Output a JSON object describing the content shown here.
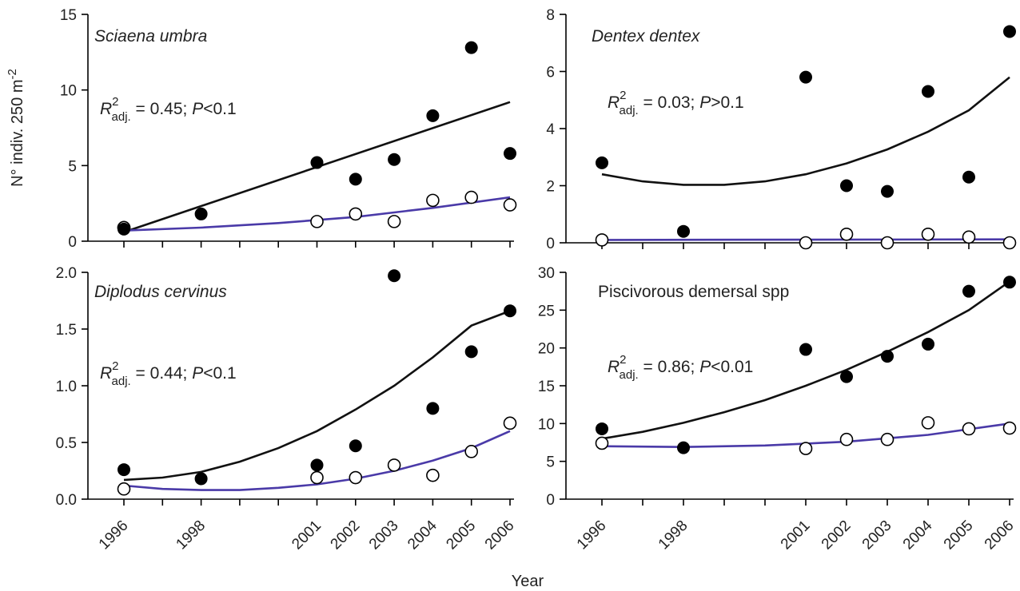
{
  "figure": {
    "ylabel": "N° indiv. 250 m",
    "ylabel_sup": "-2",
    "xlabel": "Year",
    "year_ticks": [
      "1996",
      "1998",
      "2001",
      "2002",
      "2003",
      "2004",
      "2005",
      "2006"
    ]
  },
  "chart_data": [
    {
      "type": "scatter",
      "title": "Sciaena umbra",
      "title_italic": true,
      "r2_value": "0.45",
      "p_op": "<",
      "p_value": "0.1",
      "xlim": [
        1996,
        2006
      ],
      "ylim": [
        0,
        15
      ],
      "yticks": [
        0,
        5,
        10,
        15
      ],
      "ytick_labels": [
        "0",
        "5",
        "10",
        "15"
      ],
      "filled": {
        "x": [
          1996,
          1998,
          2001,
          2002,
          2003,
          2004,
          2005,
          2006
        ],
        "y": [
          0.8,
          1.8,
          5.2,
          4.1,
          5.4,
          8.3,
          12.8,
          5.8
        ]
      },
      "open": {
        "x": [
          1996,
          1996,
          2001,
          2002,
          2003,
          2004,
          2005,
          2006
        ],
        "y": [
          0.9,
          0.9,
          1.3,
          1.8,
          1.3,
          2.7,
          2.9,
          2.4
        ]
      },
      "fit_filled": {
        "x": [
          1996,
          2006
        ],
        "y": [
          0.6,
          9.2
        ]
      },
      "fit_open": {
        "x": [
          1996,
          1998,
          2000,
          2002,
          2004,
          2006
        ],
        "y": [
          0.7,
          0.9,
          1.2,
          1.6,
          2.2,
          2.9
        ]
      }
    },
    {
      "type": "scatter",
      "title": "Dentex dentex",
      "title_italic": true,
      "r2_value": "0.03",
      "p_op": ">",
      "p_value": "0.1",
      "xlim": [
        1996,
        2006
      ],
      "ylim": [
        0,
        8
      ],
      "yticks": [
        0,
        2,
        4,
        6,
        8
      ],
      "ytick_labels": [
        "0",
        "2",
        "4",
        "6",
        "8"
      ],
      "filled": {
        "x": [
          1996,
          1998,
          2001,
          2002,
          2003,
          2004,
          2005,
          2006
        ],
        "y": [
          2.8,
          0.4,
          5.8,
          2.0,
          1.8,
          5.3,
          2.3,
          7.4
        ]
      },
      "open": {
        "x": [
          1996,
          2001,
          2002,
          2003,
          2004,
          2005,
          2006
        ],
        "y": [
          0.1,
          0.0,
          0.3,
          0.0,
          0.3,
          0.2,
          0.0
        ]
      },
      "fit_filled": {
        "x": [
          1996,
          1997,
          1998,
          1999,
          2000,
          2001,
          2002,
          2003,
          2004,
          2005,
          2006
        ],
        "y": [
          2.4,
          2.15,
          2.03,
          2.03,
          2.15,
          2.4,
          2.78,
          3.27,
          3.89,
          4.64,
          5.8
        ]
      },
      "fit_open": {
        "x": [
          1996,
          2006
        ],
        "y": [
          0.1,
          0.12
        ]
      }
    },
    {
      "type": "scatter",
      "title": "Diplodus cervinus",
      "title_italic": true,
      "r2_value": "0.44",
      "p_op": "<",
      "p_value": "0.1",
      "xlim": [
        1996,
        2006
      ],
      "ylim": [
        0,
        2.0
      ],
      "yticks": [
        0,
        0.5,
        1.0,
        1.5,
        2.0
      ],
      "ytick_labels": [
        "0.0",
        "0.5",
        "1.0",
        "1.5",
        "2.0"
      ],
      "filled": {
        "x": [
          1996,
          1998,
          2001,
          2002,
          2003,
          2004,
          2005,
          2006
        ],
        "y": [
          0.26,
          0.18,
          0.3,
          0.47,
          1.97,
          0.8,
          1.3,
          1.66
        ]
      },
      "open": {
        "x": [
          1996,
          2001,
          2002,
          2003,
          2004,
          2005,
          2006
        ],
        "y": [
          0.09,
          0.19,
          0.19,
          0.3,
          0.21,
          0.42,
          0.67
        ]
      },
      "fit_filled": {
        "x": [
          1996,
          1997,
          1998,
          1999,
          2000,
          2001,
          2002,
          2003,
          2004,
          2005,
          2006
        ],
        "y": [
          0.17,
          0.19,
          0.24,
          0.33,
          0.45,
          0.6,
          0.79,
          1.0,
          1.25,
          1.53,
          1.66
        ]
      },
      "fit_open": {
        "x": [
          1996,
          1997,
          1998,
          1999,
          2000,
          2001,
          2002,
          2003,
          2004,
          2005,
          2006
        ],
        "y": [
          0.12,
          0.09,
          0.08,
          0.08,
          0.1,
          0.13,
          0.18,
          0.25,
          0.34,
          0.45,
          0.6
        ]
      }
    },
    {
      "type": "scatter",
      "title": "Piscivorous demersal spp",
      "title_italic": false,
      "r2_value": "0.86",
      "p_op": "<",
      "p_value": "0.01",
      "xlim": [
        1996,
        2006
      ],
      "ylim": [
        0,
        30
      ],
      "yticks": [
        0,
        5,
        10,
        15,
        20,
        25,
        30
      ],
      "ytick_labels": [
        "0",
        "5",
        "10",
        "15",
        "20",
        "25",
        "30"
      ],
      "filled": {
        "x": [
          1996,
          1998,
          2001,
          2002,
          2003,
          2004,
          2005,
          2006
        ],
        "y": [
          9.3,
          6.8,
          19.8,
          16.2,
          18.9,
          20.5,
          27.5,
          28.7
        ]
      },
      "open": {
        "x": [
          1996,
          2001,
          2002,
          2003,
          2004,
          2005,
          2006
        ],
        "y": [
          7.4,
          6.7,
          7.9,
          7.9,
          10.1,
          9.3,
          9.4
        ]
      },
      "fit_filled": {
        "x": [
          1996,
          1997,
          1998,
          1999,
          2000,
          2001,
          2002,
          2003,
          2004,
          2005,
          2006
        ],
        "y": [
          8.0,
          8.9,
          10.1,
          11.5,
          13.1,
          15.0,
          17.1,
          19.5,
          22.1,
          25.0,
          28.8
        ]
      },
      "fit_open": {
        "x": [
          1996,
          1998,
          2000,
          2002,
          2004,
          2006
        ],
        "y": [
          7.0,
          6.9,
          7.1,
          7.6,
          8.5,
          10.0
        ]
      }
    }
  ],
  "colors": {
    "filled_marker": "#000000",
    "open_marker_stroke": "#000000",
    "fit_filled": "#111111",
    "fit_open": "#4a3aa8",
    "axis": "#000000"
  }
}
